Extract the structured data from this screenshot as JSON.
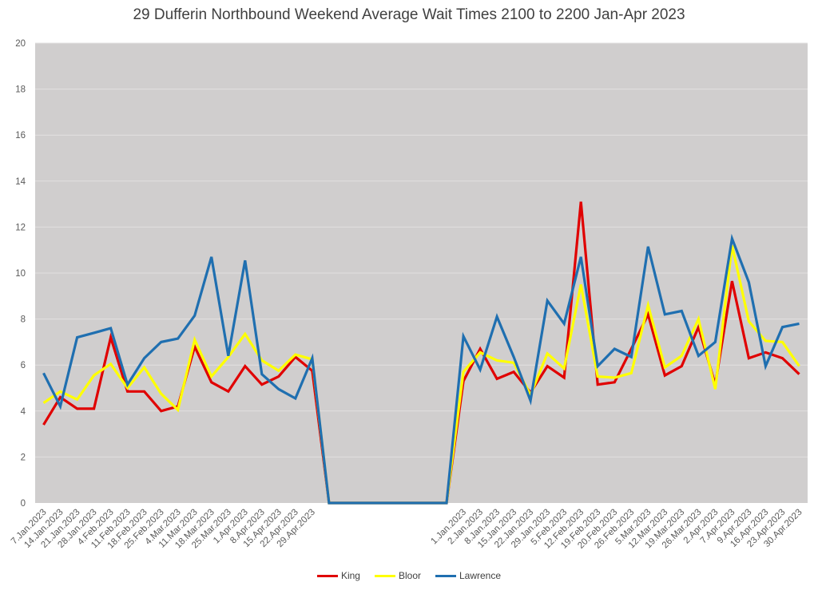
{
  "chart_data": {
    "type": "line",
    "title": "29 Dufferin Northbound Weekend Average Wait Times 2100 to 2200 Jan-Apr 2023",
    "xlabel": "",
    "ylabel": "",
    "ylim": [
      0,
      20
    ],
    "yticks": [
      0,
      2,
      4,
      6,
      8,
      10,
      12,
      14,
      16,
      18,
      20
    ],
    "grid": true,
    "legend": "bottom",
    "plot_bg": "#d0cece",
    "categories": [
      "7.Jan.2023",
      "14.Jan.2023",
      "21.Jan.2023",
      "28.Jan.2023",
      "4.Feb.2023",
      "11.Feb.2023",
      "18.Feb.2023",
      "25.Feb.2023",
      "4.Mar.2023",
      "11.Mar.2023",
      "18.Mar.2023",
      "25.Mar.2023",
      "1.Apr.2023",
      "8.Apr.2023",
      "15.Apr.2023",
      "22.Apr.2023",
      "29.Apr.2023",
      "",
      "",
      "",
      "",
      "",
      "",
      "",
      "",
      "1.Jan.2023",
      "2.Jan.2023",
      "8.Jan.2023",
      "15.Jan.2023",
      "22.Jan.2023",
      "29.Jan.2023",
      "5.Feb.2023",
      "12.Feb.2023",
      "19.Feb.2023",
      "20.Feb.2023",
      "26.Feb.2023",
      "5.Mar.2023",
      "12.Mar.2023",
      "19.Mar.2023",
      "26.Mar.2023",
      "2.Apr.2023",
      "7.Apr.2023",
      "9.Apr.2023",
      "16.Apr.2023",
      "23.Apr.2023",
      "30.Apr.2023"
    ],
    "series": [
      {
        "name": "King",
        "color": "#e00000",
        "values": [
          3.4,
          4.6,
          4.1,
          4.1,
          7.2,
          4.85,
          4.85,
          4.0,
          4.2,
          6.8,
          5.25,
          4.85,
          5.95,
          5.15,
          5.5,
          6.35,
          5.75,
          0,
          0,
          0,
          0,
          0,
          0,
          0,
          0,
          5.3,
          6.7,
          5.4,
          5.7,
          4.8,
          5.95,
          5.45,
          13.1,
          5.15,
          5.25,
          6.7,
          8.2,
          5.55,
          5.95,
          7.65,
          5.15,
          9.65,
          6.3,
          6.55,
          6.3,
          5.6
        ]
      },
      {
        "name": "Bloor",
        "color": "#ffff00",
        "values": [
          4.35,
          4.85,
          4.5,
          5.55,
          6.05,
          5.0,
          5.9,
          4.75,
          4.05,
          7.1,
          5.5,
          6.35,
          7.35,
          6.2,
          5.75,
          6.45,
          6.25,
          0,
          0,
          0,
          0,
          0,
          0,
          0,
          0,
          5.7,
          6.55,
          6.2,
          6.1,
          4.7,
          6.5,
          5.85,
          9.5,
          5.5,
          5.45,
          5.65,
          8.6,
          5.9,
          6.4,
          8.0,
          4.95,
          11.2,
          7.9,
          7.05,
          7.0,
          5.95
        ]
      },
      {
        "name": "Lawrence",
        "color": "#1f6fb0",
        "values": [
          5.65,
          4.2,
          7.2,
          7.4,
          7.6,
          5.15,
          6.3,
          7.0,
          7.15,
          8.15,
          10.7,
          6.4,
          10.55,
          5.6,
          4.95,
          4.55,
          6.3,
          0,
          0,
          0,
          0,
          0,
          0,
          0,
          0,
          7.25,
          5.8,
          8.1,
          6.35,
          4.45,
          8.8,
          7.8,
          10.7,
          5.95,
          6.7,
          6.35,
          11.15,
          8.2,
          8.35,
          6.4,
          7.0,
          11.5,
          9.6,
          5.95,
          7.65,
          7.8
        ]
      }
    ]
  }
}
